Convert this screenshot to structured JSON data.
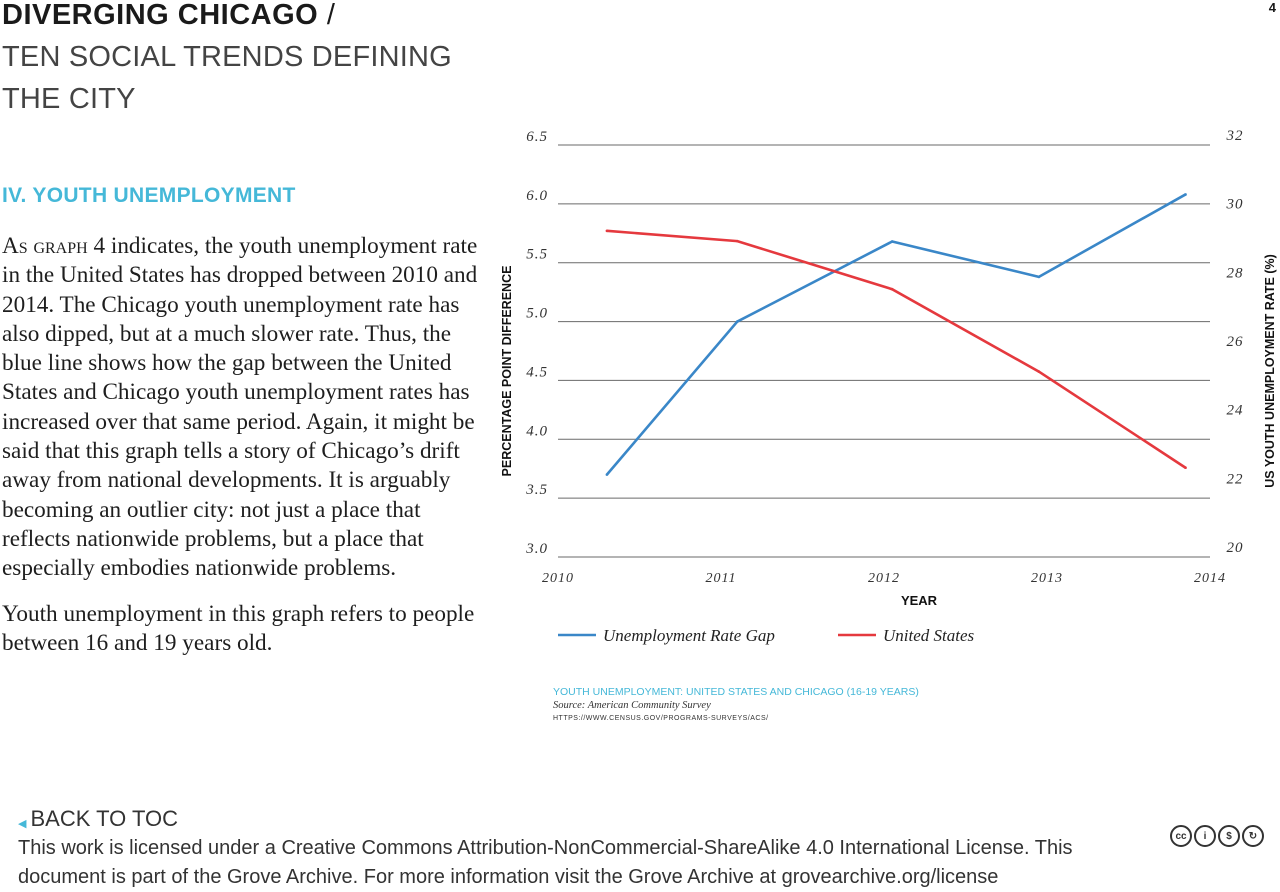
{
  "page_number": "4",
  "title": {
    "main": "DIVERGING CHICAGO",
    "separator": "/",
    "sub": "TEN SOCIAL TRENDS DEFINING THE CITY"
  },
  "section_heading": "IV. YOUTH UNEMPLOYMENT",
  "body": {
    "lead_smallcaps": "As graph 4",
    "paragraph1_rest": " indicates, the youth unemployment rate in the United States has dropped between 2010 and 2014. The Chicago youth unemployment rate has also dipped, but at a much slower rate. Thus, the blue line shows how the gap between the United States and Chicago youth unemployment rates has increased over that same period. Again, it might be said that this graph tells a story of Chicago’s drift away from national developments. It is arguably becoming an outlier city: not just a place that reflects nationwide problems, but a place that especially embodies nationwide problems.",
    "paragraph2": "Youth unemployment in this graph refers to people between 16 and 19 years old."
  },
  "chart_data": {
    "type": "line",
    "x": [
      2010.3,
      2011.1,
      2012.05,
      2012.95,
      2013.85
    ],
    "x_ticks": [
      "2010",
      "2011",
      "2012",
      "2013",
      "2014"
    ],
    "xlim": [
      2010,
      2014
    ],
    "xlabel": "YEAR",
    "y_left": {
      "label": "PERCENTAGE POINT DIFFERENCE",
      "lim": [
        3.0,
        6.5
      ],
      "ticks": [
        "3.0",
        "3.5",
        "4.0",
        "4.5",
        "5.0",
        "5.5",
        "6.0",
        "6.5"
      ]
    },
    "y_right": {
      "label": "US YOUTH UNEMPLOYMENT RATE (%)",
      "lim": [
        20,
        32
      ],
      "ticks": [
        "20",
        "22",
        "24",
        "26",
        "28",
        "30",
        "32"
      ]
    },
    "series": [
      {
        "name": "Unemployment Rate Gap",
        "axis": "left",
        "color": "#3a87c8",
        "values": [
          3.7,
          5.0,
          5.68,
          5.38,
          6.08
        ]
      },
      {
        "name": "United States",
        "axis": "right",
        "color": "#e5393e",
        "values": [
          29.5,
          29.2,
          27.8,
          25.4,
          22.6
        ]
      }
    ],
    "grid": true,
    "legend_position": "bottom"
  },
  "caption": {
    "title": "YOUTH UNEMPLOYMENT: UNITED STATES AND CHICAGO (16-19 YEARS)",
    "source": "Source: American Community Survey",
    "url": "HTTPS://WWW.CENSUS.GOV/PROGRAMS-SURVEYS/ACS/"
  },
  "back_link": "BACK TO TOC",
  "license": "This work is licensed under a Creative Commons Attribution-NonCommercial-ShareAlike 4.0 International License. This document is part of the Grove Archive. For more information visit the Grove Archive at grovearchive.org/license",
  "cc_icons": [
    "cc-icon",
    "by-icon",
    "nc-icon",
    "sa-icon"
  ],
  "cc_labels": [
    "cc",
    "i",
    "$",
    "↻"
  ]
}
